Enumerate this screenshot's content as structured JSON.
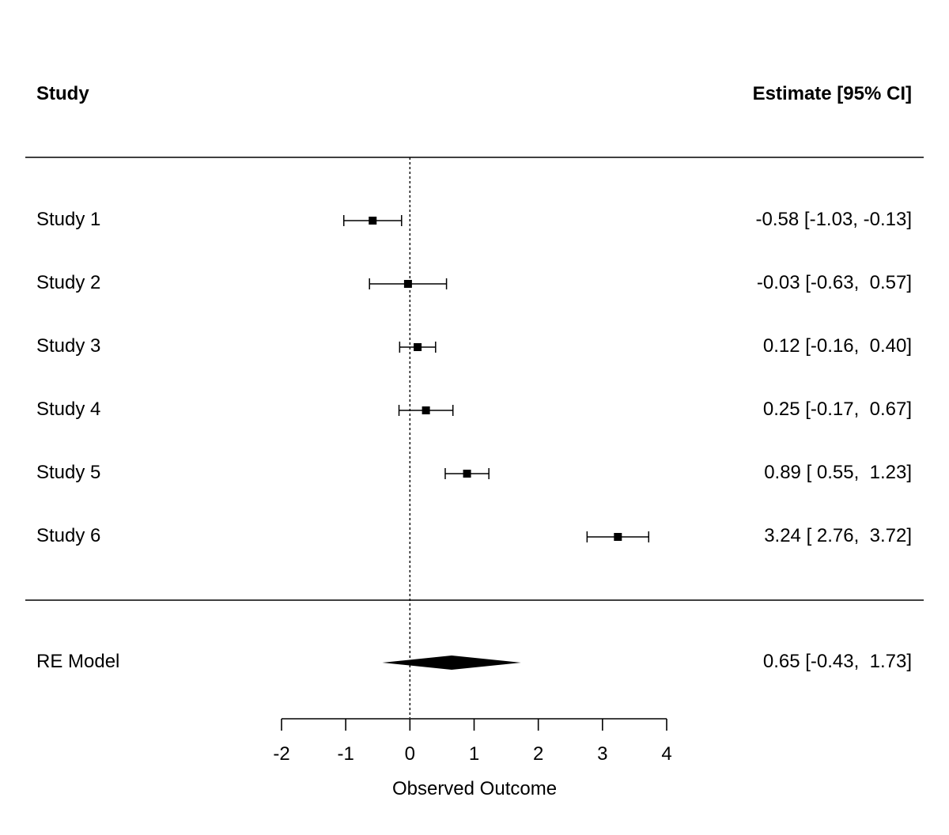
{
  "chart_data": {
    "type": "forest",
    "header": {
      "left": "Study",
      "right": "Estimate [95% CI]"
    },
    "xlabel": "Observed Outcome",
    "xlim": [
      -2,
      4
    ],
    "xticks": [
      -2,
      -1,
      0,
      1,
      2,
      3,
      4
    ],
    "xtick_labels": [
      "-2",
      "-1",
      "0",
      "1",
      "2",
      "3",
      "4"
    ],
    "reference_line": 0,
    "studies": [
      {
        "name": "Study 1",
        "estimate": -0.58,
        "lower": -1.03,
        "upper": -0.13,
        "label": "-0.58 [-1.03, -0.13]"
      },
      {
        "name": "Study 2",
        "estimate": -0.03,
        "lower": -0.63,
        "upper": 0.57,
        "label": "-0.03 [-0.63,  0.57]"
      },
      {
        "name": "Study 3",
        "estimate": 0.12,
        "lower": -0.16,
        "upper": 0.4,
        "label": "0.12 [-0.16,  0.40]"
      },
      {
        "name": "Study 4",
        "estimate": 0.25,
        "lower": -0.17,
        "upper": 0.67,
        "label": "0.25 [-0.17,  0.67]"
      },
      {
        "name": "Study 5",
        "estimate": 0.89,
        "lower": 0.55,
        "upper": 1.23,
        "label": "0.89 [ 0.55,  1.23]"
      },
      {
        "name": "Study 6",
        "estimate": 3.24,
        "lower": 2.76,
        "upper": 3.72,
        "label": "3.24 [ 2.76,  3.72]"
      }
    ],
    "summary": {
      "name": "RE Model",
      "estimate": 0.65,
      "lower": -0.43,
      "upper": 1.73,
      "label": "0.65 [-0.43,  1.73]"
    }
  }
}
